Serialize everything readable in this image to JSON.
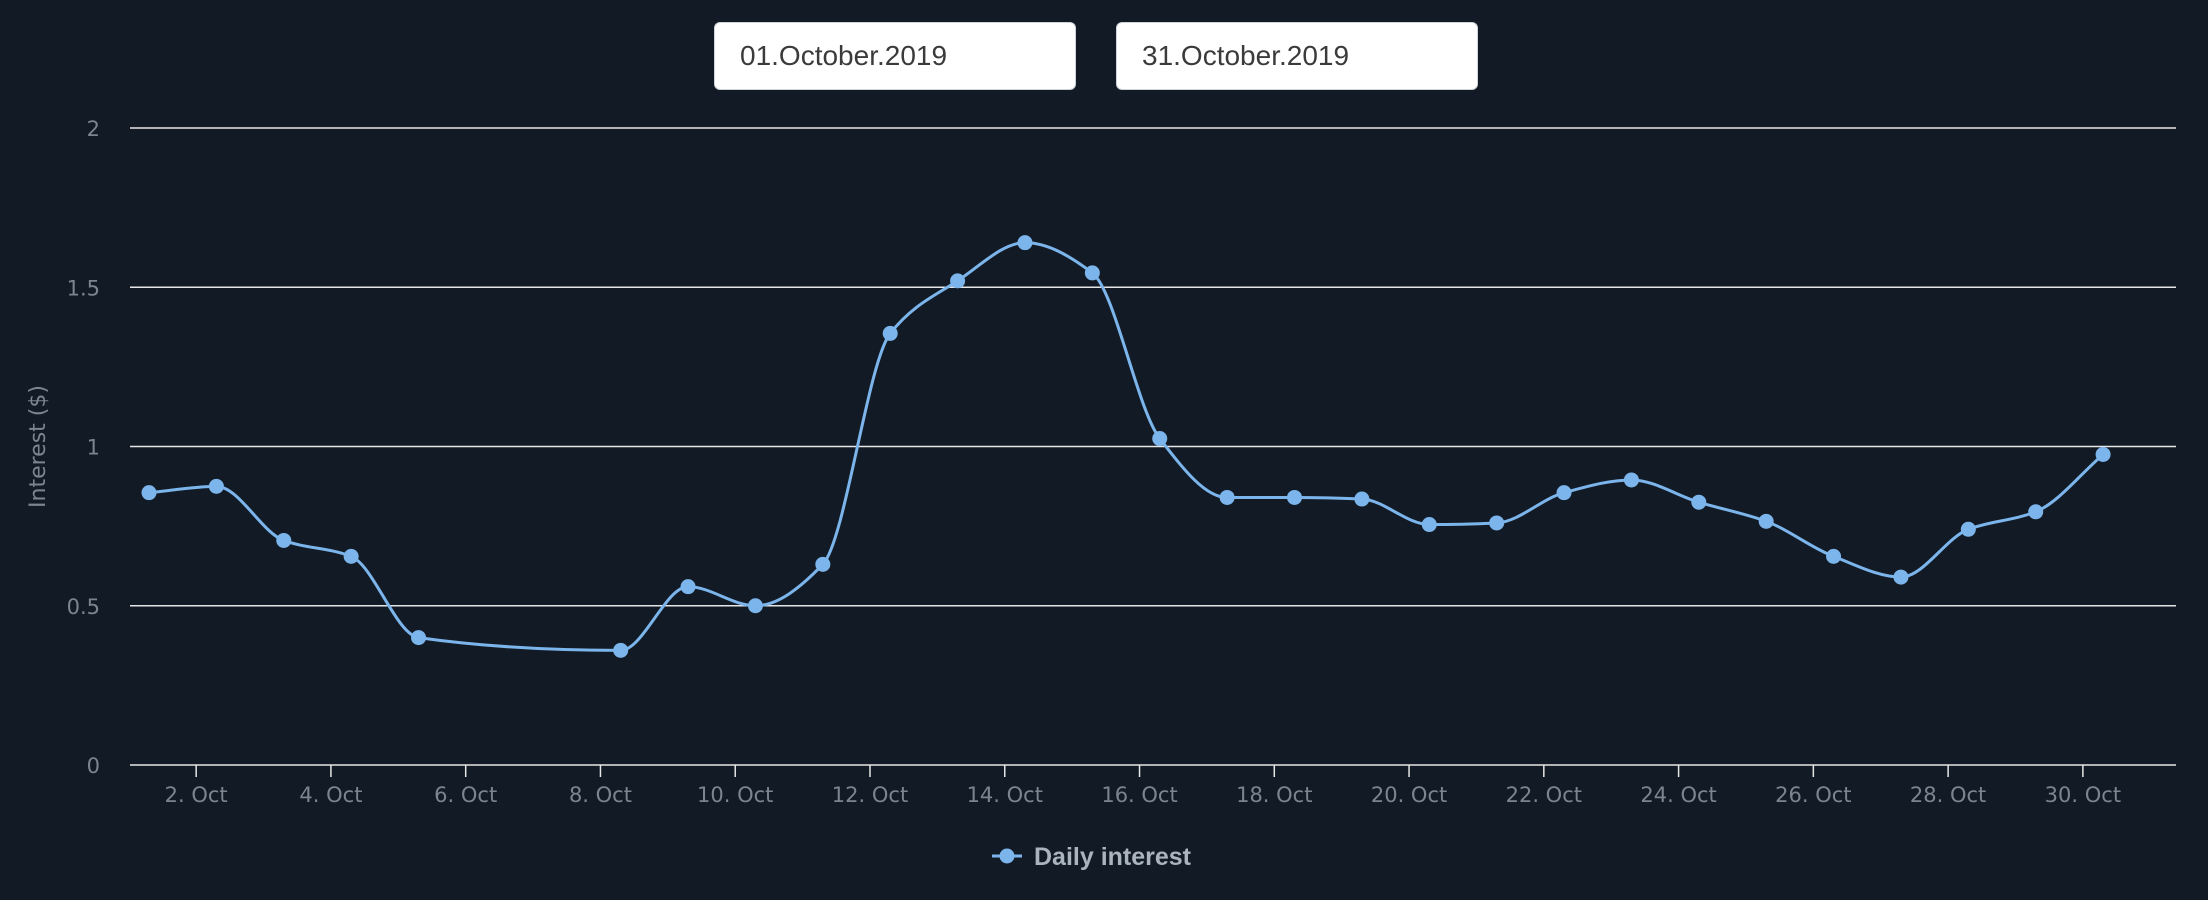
{
  "date_range": {
    "start": "01.October.2019",
    "end": "31.October.2019"
  },
  "colors": {
    "background": "#121b25",
    "series": "#7cb5ec",
    "grid": "#e6e6e6",
    "axis_text": "#7b8590",
    "legend_text": "#a9b4bf"
  },
  "chart_data": {
    "type": "line",
    "smooth": true,
    "ylabel": "Interest ($)",
    "ylim": [
      0,
      2
    ],
    "yticks": [
      "0",
      "0.5",
      "1",
      "1.5",
      "2"
    ],
    "ytick_values": [
      0,
      0.5,
      1,
      1.5,
      2
    ],
    "xlim": [
      1.3,
      31.1
    ],
    "xticks": [
      "2. Oct",
      "4. Oct",
      "6. Oct",
      "8. Oct",
      "10. Oct",
      "12. Oct",
      "14. Oct",
      "16. Oct",
      "18. Oct",
      "20. Oct",
      "22. Oct",
      "24. Oct",
      "26. Oct",
      "28. Oct",
      "30. Oct"
    ],
    "xtick_values": [
      2,
      4,
      6,
      8,
      10,
      12,
      14,
      16,
      18,
      20,
      22,
      24,
      26,
      28,
      30
    ],
    "grid": true,
    "legend": "bottom-center",
    "series": [
      {
        "name": "Daily interest",
        "x": [
          1.3,
          2.3,
          3.3,
          4.3,
          5.3,
          8.3,
          9.3,
          10.3,
          11.3,
          12.3,
          13.3,
          14.3,
          15.3,
          16.3,
          17.3,
          18.3,
          19.3,
          20.3,
          21.3,
          22.3,
          23.3,
          24.3,
          25.3,
          26.3,
          27.3,
          28.3,
          29.3,
          30.3
        ],
        "values": [
          0.855,
          0.875,
          0.705,
          0.655,
          0.4,
          0.36,
          0.56,
          0.5,
          0.63,
          1.355,
          1.52,
          1.64,
          1.545,
          1.025,
          0.84,
          0.84,
          0.835,
          0.755,
          0.76,
          0.855,
          0.895,
          0.825,
          0.765,
          0.655,
          0.59,
          0.74,
          0.795,
          0.975
        ]
      }
    ]
  }
}
